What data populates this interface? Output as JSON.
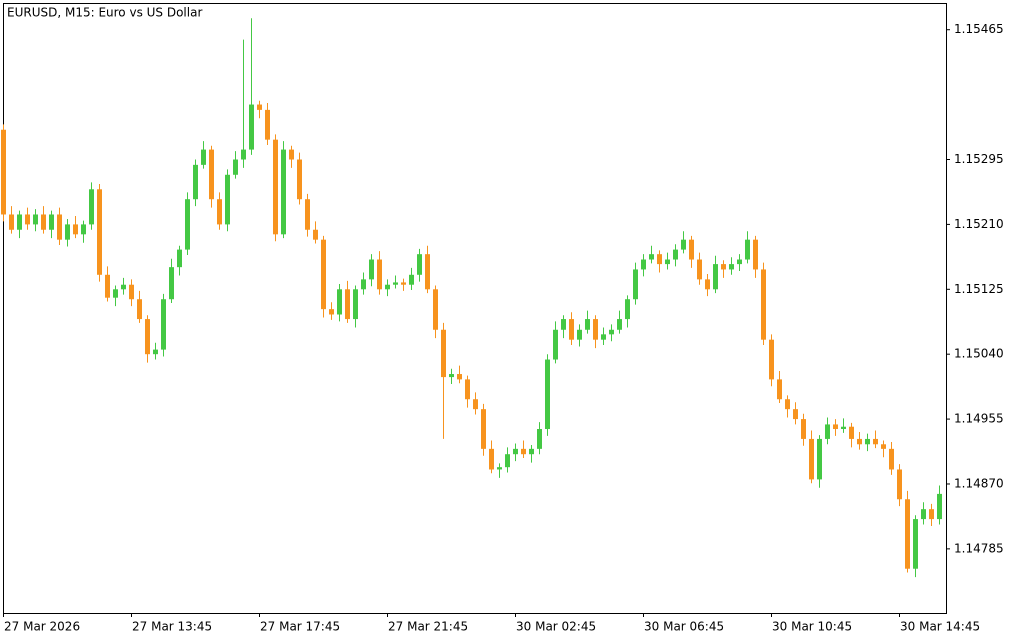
{
  "chart_data": {
    "type": "candlestick",
    "title": "EURUSD, M15:  Euro vs US Dollar",
    "categories": [
      "27 Mar 2026",
      null,
      null,
      null,
      null,
      null,
      null,
      null,
      null,
      null,
      null,
      null,
      null,
      null,
      null,
      null,
      "27 Mar 13:45",
      null,
      null,
      null,
      null,
      null,
      null,
      null,
      null,
      null,
      null,
      null,
      null,
      null,
      null,
      null,
      "27 Mar 17:45",
      null,
      null,
      null,
      null,
      null,
      null,
      null,
      null,
      null,
      null,
      null,
      null,
      null,
      null,
      null,
      "27 Mar 21:45",
      null,
      null,
      null,
      null,
      null,
      null,
      null,
      null,
      null,
      null,
      null,
      null,
      null,
      null,
      null,
      "30 Mar 02:45",
      null,
      null,
      null,
      null,
      null,
      null,
      null,
      null,
      null,
      null,
      null,
      null,
      null,
      null,
      null,
      "30 Mar 06:45",
      null,
      null,
      null,
      null,
      null,
      null,
      null,
      null,
      null,
      null,
      null,
      null,
      null,
      null,
      null,
      "30 Mar 10:45",
      null,
      null,
      null,
      null,
      null,
      null,
      null,
      null,
      null,
      null,
      null,
      null,
      null,
      null,
      null,
      "30 Mar 14:45",
      null,
      null,
      null,
      null,
      null
    ],
    "open": [
      1.15334,
      1.15223,
      1.15203,
      1.15223,
      1.1521,
      1.15223,
      1.15203,
      1.15223,
      1.1519,
      1.1521,
      1.15197,
      1.1521,
      1.15256,
      1.15144,
      1.15114,
      1.15125,
      1.15131,
      1.15112,
      1.15086,
      1.1504,
      1.15046,
      1.15112,
      1.15154,
      1.15177,
      1.15243,
      1.15288,
      1.15308,
      1.15243,
      1.1521,
      1.15275,
      1.15295,
      1.15308,
      1.15367,
      1.1536,
      1.15321,
      1.15197,
      1.15308,
      1.15295,
      1.15243,
      1.15203,
      1.1519,
      1.15099,
      1.15092,
      1.15125,
      1.15086,
      1.15125,
      1.15138,
      1.15164,
      1.15125,
      1.15131,
      1.15134,
      1.15131,
      1.15144,
      1.15171,
      1.15125,
      1.15072,
      1.1501,
      1.15014,
      1.15007,
      1.14981,
      1.14968,
      1.14916,
      1.14889,
      1.14892,
      1.14909,
      1.14916,
      1.14909,
      1.14916,
      1.14942,
      1.15033,
      1.15072,
      1.15086,
      1.15059,
      1.15072,
      1.15086,
      1.15059,
      1.15066,
      1.15072,
      1.15086,
      1.15112,
      1.15151,
      1.15164,
      1.15171,
      1.15158,
      1.15164,
      1.15177,
      1.1519,
      1.15164,
      1.15138,
      1.15125,
      1.15158,
      1.15151,
      1.15158,
      1.15164,
      1.1519,
      1.15151,
      1.15059,
      1.15007,
      1.14981,
      1.14968,
      1.14955,
      1.14929,
      1.14876,
      1.14929,
      1.14948,
      1.14942,
      1.14945,
      1.14929,
      1.14922,
      1.14929,
      1.14922,
      1.14916,
      1.14889,
      1.1485,
      1.14759,
      1.14824,
      1.14837,
      1.14824
    ],
    "high": [
      1.15341,
      1.15234,
      1.15228,
      1.15232,
      1.1523,
      1.15234,
      1.15228,
      1.15232,
      1.15217,
      1.15221,
      1.15215,
      1.15265,
      1.15263,
      1.15155,
      1.1513,
      1.1514,
      1.15138,
      1.15123,
      1.15091,
      1.15055,
      1.15119,
      1.15165,
      1.15182,
      1.15252,
      1.15295,
      1.15319,
      1.15313,
      1.15252,
      1.15282,
      1.15306,
      1.15452,
      1.1548,
      1.15372,
      1.15369,
      1.15328,
      1.15319,
      1.15313,
      1.15304,
      1.1525,
      1.15214,
      1.15195,
      1.15108,
      1.15132,
      1.15136,
      1.1513,
      1.15147,
      1.15171,
      1.15175,
      1.15138,
      1.15143,
      1.15139,
      1.15153,
      1.15178,
      1.15182,
      1.1513,
      1.15081,
      1.15021,
      1.15025,
      1.15012,
      1.1499,
      1.14975,
      1.14927,
      1.14897,
      1.14918,
      1.14923,
      1.14927,
      1.14921,
      1.14951,
      1.1504,
      1.15083,
      1.15091,
      1.15095,
      1.15079,
      1.15097,
      1.15091,
      1.15075,
      1.15079,
      1.15097,
      1.15117,
      1.1516,
      1.15171,
      1.15182,
      1.15176,
      1.15173,
      1.15184,
      1.15201,
      1.15195,
      1.15173,
      1.15145,
      1.15169,
      1.15163,
      1.15167,
      1.15171,
      1.15201,
      1.15195,
      1.1516,
      1.15066,
      1.15018,
      1.14986,
      1.14977,
      1.14962,
      1.1494,
      1.14934,
      1.14957,
      1.14955,
      1.14956,
      1.1495,
      1.14938,
      1.14936,
      1.1494,
      1.14927,
      1.14925,
      1.14896,
      1.14861,
      1.14829,
      1.14846,
      1.14844,
      1.14868
    ],
    "low": [
      1.15214,
      1.15198,
      1.15192,
      1.15203,
      1.15201,
      1.15198,
      1.15192,
      1.15183,
      1.15181,
      1.15192,
      1.15186,
      1.15203,
      1.15135,
      1.15109,
      1.15103,
      1.15118,
      1.15103,
      1.15081,
      1.15029,
      1.15033,
      1.15037,
      1.15107,
      1.15143,
      1.1517,
      1.15234,
      1.15283,
      1.15232,
      1.15203,
      1.15201,
      1.1527,
      1.15284,
      1.15301,
      1.15349,
      1.15314,
      1.15188,
      1.15192,
      1.15284,
      1.15236,
      1.15194,
      1.15185,
      1.15088,
      1.15085,
      1.15083,
      1.15081,
      1.15075,
      1.15118,
      1.15129,
      1.15118,
      1.15116,
      1.15126,
      1.15123,
      1.15124,
      1.15135,
      1.1512,
      1.15061,
      1.14929,
      1.15001,
      1.15002,
      1.1497,
      1.14961,
      1.14907,
      1.14884,
      1.14878,
      1.14885,
      1.149,
      1.14904,
      1.14898,
      1.14909,
      1.14933,
      1.15028,
      1.15061,
      1.15052,
      1.1505,
      1.15067,
      1.15048,
      1.15052,
      1.15057,
      1.15067,
      1.15075,
      1.15105,
      1.15142,
      1.15159,
      1.15147,
      1.15151,
      1.15155,
      1.15172,
      1.15153,
      1.15131,
      1.15116,
      1.1512,
      1.1514,
      1.15144,
      1.15149,
      1.15159,
      1.1514,
      1.15052,
      1.14998,
      1.14976,
      1.14957,
      1.14948,
      1.1492,
      1.14871,
      1.14865,
      1.14922,
      1.14933,
      1.14937,
      1.14918,
      1.14915,
      1.14913,
      1.14917,
      1.14905,
      1.14882,
      1.14841,
      1.14754,
      1.14748,
      1.14817,
      1.14815,
      1.14817
    ],
    "close": [
      1.15223,
      1.15203,
      1.15223,
      1.1521,
      1.15223,
      1.15203,
      1.15223,
      1.1519,
      1.1521,
      1.15197,
      1.1521,
      1.15256,
      1.15144,
      1.15114,
      1.15125,
      1.15131,
      1.15112,
      1.15086,
      1.1504,
      1.15046,
      1.15112,
      1.15154,
      1.15177,
      1.15243,
      1.15288,
      1.15308,
      1.15243,
      1.1521,
      1.15275,
      1.15295,
      1.15308,
      1.15367,
      1.1536,
      1.15321,
      1.15197,
      1.15308,
      1.15295,
      1.15243,
      1.15203,
      1.1519,
      1.15099,
      1.15092,
      1.15125,
      1.15086,
      1.15125,
      1.15138,
      1.15164,
      1.15125,
      1.15131,
      1.15134,
      1.15131,
      1.15144,
      1.15171,
      1.15125,
      1.15072,
      1.1501,
      1.15014,
      1.15007,
      1.14981,
      1.14968,
      1.14916,
      1.14889,
      1.14892,
      1.14909,
      1.14916,
      1.14909,
      1.14916,
      1.14942,
      1.15033,
      1.15072,
      1.15086,
      1.15059,
      1.15072,
      1.15086,
      1.15059,
      1.15066,
      1.15072,
      1.15086,
      1.15112,
      1.15151,
      1.15164,
      1.15171,
      1.15158,
      1.15164,
      1.15177,
      1.1519,
      1.15164,
      1.15138,
      1.15125,
      1.15158,
      1.15151,
      1.15158,
      1.15164,
      1.1519,
      1.15151,
      1.15059,
      1.15007,
      1.14981,
      1.14968,
      1.14955,
      1.14929,
      1.14876,
      1.14929,
      1.14948,
      1.14942,
      1.14945,
      1.14929,
      1.14922,
      1.14929,
      1.14922,
      1.14916,
      1.14889,
      1.1485,
      1.14759,
      1.14824,
      1.14837,
      1.14824,
      1.14857
    ],
    "up_color": "#44c844",
    "down_color": "#f7931e",
    "ylim": [
      1.14701,
      1.155
    ],
    "yticks": [
      1.15465,
      1.15295,
      {
        "value": 1.1521,
        "label": "1.15210"
      },
      1.15125,
      {
        "value": 1.1504,
        "label": "1.15040"
      },
      1.14955,
      {
        "value": 1.1487,
        "label": "1.14870"
      },
      1.14785
    ]
  }
}
